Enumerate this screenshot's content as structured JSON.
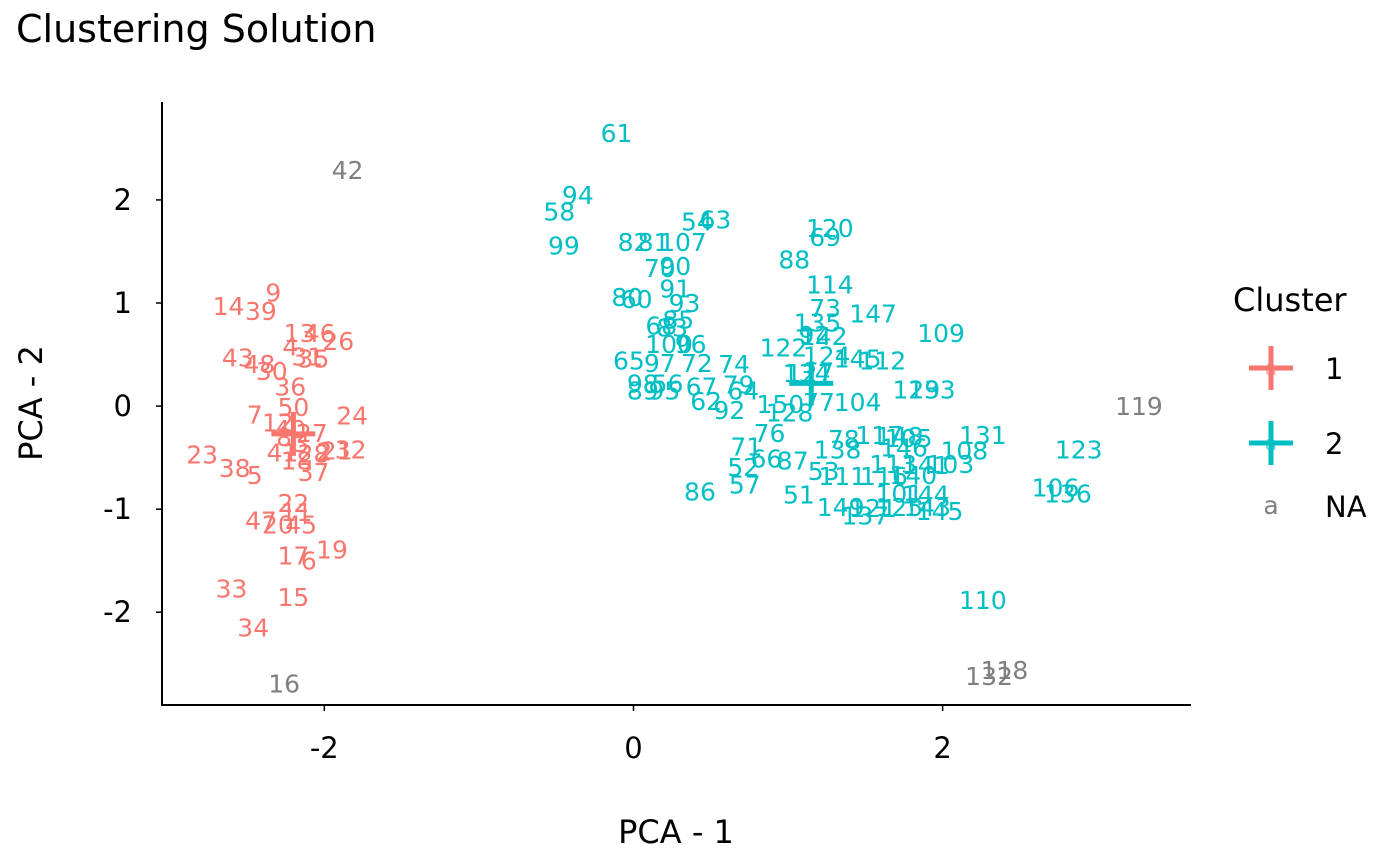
{
  "chart_data": {
    "type": "scatter",
    "title": "Clustering Solution",
    "xlabel": "PCA - 1",
    "ylabel": "PCA - 2",
    "xlim": [
      -3.05,
      3.6
    ],
    "ylim": [
      -2.9,
      2.95
    ],
    "xticks": [
      {
        "value": -2,
        "label": "-2"
      },
      {
        "value": 0,
        "label": "0"
      },
      {
        "value": 2,
        "label": "2"
      }
    ],
    "yticks": [
      {
        "value": -2,
        "label": "-2"
      },
      {
        "value": -1,
        "label": "-1"
      },
      {
        "value": 0,
        "label": "0"
      },
      {
        "value": 1,
        "label": "1"
      },
      {
        "value": 2,
        "label": "2"
      }
    ],
    "grid": false,
    "legend": {
      "title": "Cluster",
      "position": "right",
      "entries": [
        {
          "label": "1",
          "color": "#F8766D",
          "symbol": "cross"
        },
        {
          "label": "2",
          "color": "#00BFC4",
          "symbol": "cross"
        },
        {
          "label": "NA",
          "color": "#7F7F7F",
          "symbol": "a"
        }
      ]
    },
    "centers": [
      {
        "cluster": "1",
        "x": -2.2,
        "y": -0.27
      },
      {
        "cluster": "2",
        "x": 1.15,
        "y": 0.22
      }
    ],
    "series": [
      {
        "name": "1",
        "color": "#F8766D",
        "points": [
          {
            "label": "9",
            "x": -2.33,
            "y": 1.1
          },
          {
            "label": "14",
            "x": -2.62,
            "y": 0.97
          },
          {
            "label": "39",
            "x": -2.41,
            "y": 0.92
          },
          {
            "label": "13",
            "x": -2.16,
            "y": 0.71
          },
          {
            "label": "46",
            "x": -2.03,
            "y": 0.71
          },
          {
            "label": "26",
            "x": -1.91,
            "y": 0.63
          },
          {
            "label": "4",
            "x": -2.22,
            "y": 0.58
          },
          {
            "label": "31",
            "x": -2.11,
            "y": 0.48
          },
          {
            "label": "35",
            "x": -2.07,
            "y": 0.46
          },
          {
            "label": "43",
            "x": -2.56,
            "y": 0.47
          },
          {
            "label": "48",
            "x": -2.42,
            "y": 0.41
          },
          {
            "label": "30",
            "x": -2.34,
            "y": 0.34
          },
          {
            "label": "36",
            "x": -2.22,
            "y": 0.19
          },
          {
            "label": "7",
            "x": -2.45,
            "y": -0.08
          },
          {
            "label": "50",
            "x": -2.2,
            "y": -0.01
          },
          {
            "label": "12",
            "x": -2.3,
            "y": -0.16
          },
          {
            "label": "40",
            "x": -2.22,
            "y": -0.22
          },
          {
            "label": "8",
            "x": -2.26,
            "y": -0.3
          },
          {
            "label": "3",
            "x": -2.15,
            "y": -0.36
          },
          {
            "label": "27",
            "x": -2.08,
            "y": -0.26
          },
          {
            "label": "24",
            "x": -1.82,
            "y": -0.09
          },
          {
            "label": "23",
            "x": -2.79,
            "y": -0.47
          },
          {
            "label": "38",
            "x": -2.58,
            "y": -0.6
          },
          {
            "label": "5",
            "x": -2.45,
            "y": -0.67
          },
          {
            "label": "41",
            "x": -2.27,
            "y": -0.45
          },
          {
            "label": "18",
            "x": -2.18,
            "y": -0.53
          },
          {
            "label": "28",
            "x": -2.07,
            "y": -0.46
          },
          {
            "label": "2",
            "x": -2.0,
            "y": -0.44
          },
          {
            "label": "21",
            "x": -1.92,
            "y": -0.43
          },
          {
            "label": "32",
            "x": -1.83,
            "y": -0.42
          },
          {
            "label": "37",
            "x": -2.07,
            "y": -0.64
          },
          {
            "label": "22",
            "x": -2.2,
            "y": -0.94
          },
          {
            "label": "47",
            "x": -2.41,
            "y": -1.11
          },
          {
            "label": "20",
            "x": -2.3,
            "y": -1.15
          },
          {
            "label": "11",
            "x": -2.18,
            "y": -1.03
          },
          {
            "label": "45",
            "x": -2.15,
            "y": -1.15
          },
          {
            "label": "17",
            "x": -2.2,
            "y": -1.45
          },
          {
            "label": "6",
            "x": -2.1,
            "y": -1.5
          },
          {
            "label": "19",
            "x": -1.95,
            "y": -1.39
          },
          {
            "label": "33",
            "x": -2.6,
            "y": -1.77
          },
          {
            "label": "15",
            "x": -2.2,
            "y": -1.85
          },
          {
            "label": "34",
            "x": -2.46,
            "y": -2.15
          }
        ]
      },
      {
        "name": "2",
        "color": "#00BFC4",
        "points": [
          {
            "label": "61",
            "x": -0.11,
            "y": 2.65
          },
          {
            "label": "94",
            "x": -0.36,
            "y": 2.05
          },
          {
            "label": "58",
            "x": -0.48,
            "y": 1.89
          },
          {
            "label": "54",
            "x": 0.41,
            "y": 1.79
          },
          {
            "label": "63",
            "x": 0.53,
            "y": 1.81
          },
          {
            "label": "120",
            "x": 1.27,
            "y": 1.73
          },
          {
            "label": "69",
            "x": 1.24,
            "y": 1.64
          },
          {
            "label": "99",
            "x": -0.45,
            "y": 1.56
          },
          {
            "label": "82",
            "x": 0.0,
            "y": 1.59
          },
          {
            "label": "81",
            "x": 0.13,
            "y": 1.59
          },
          {
            "label": "107",
            "x": 0.32,
            "y": 1.59
          },
          {
            "label": "88",
            "x": 1.04,
            "y": 1.42
          },
          {
            "label": "70",
            "x": 0.17,
            "y": 1.34
          },
          {
            "label": "90",
            "x": 0.27,
            "y": 1.36
          },
          {
            "label": "114",
            "x": 1.27,
            "y": 1.18
          },
          {
            "label": "91",
            "x": 0.27,
            "y": 1.14
          },
          {
            "label": "80",
            "x": -0.04,
            "y": 1.06
          },
          {
            "label": "60",
            "x": 0.02,
            "y": 1.04
          },
          {
            "label": "93",
            "x": 0.33,
            "y": 1.0
          },
          {
            "label": "73",
            "x": 1.24,
            "y": 0.95
          },
          {
            "label": "147",
            "x": 1.55,
            "y": 0.9
          },
          {
            "label": "135",
            "x": 1.19,
            "y": 0.81
          },
          {
            "label": "109",
            "x": 1.99,
            "y": 0.71
          },
          {
            "label": "85",
            "x": 0.29,
            "y": 0.84
          },
          {
            "label": "68",
            "x": 0.18,
            "y": 0.78
          },
          {
            "label": "83",
            "x": 0.25,
            "y": 0.76
          },
          {
            "label": "92",
            "x": 1.17,
            "y": 0.69
          },
          {
            "label": "142",
            "x": 1.23,
            "y": 0.68
          },
          {
            "label": "100",
            "x": 0.23,
            "y": 0.6
          },
          {
            "label": "96",
            "x": 0.37,
            "y": 0.6
          },
          {
            "label": "122",
            "x": 0.97,
            "y": 0.57
          },
          {
            "label": "124",
            "x": 1.25,
            "y": 0.49
          },
          {
            "label": "145",
            "x": 1.45,
            "y": 0.46
          },
          {
            "label": "112",
            "x": 1.61,
            "y": 0.44
          },
          {
            "label": "65",
            "x": -0.03,
            "y": 0.44
          },
          {
            "label": "97",
            "x": 0.17,
            "y": 0.42
          },
          {
            "label": "72",
            "x": 0.41,
            "y": 0.42
          },
          {
            "label": "74",
            "x": 0.65,
            "y": 0.41
          },
          {
            "label": "134",
            "x": 1.12,
            "y": 0.32
          },
          {
            "label": "127",
            "x": 1.14,
            "y": 0.32
          },
          {
            "label": "98",
            "x": 0.06,
            "y": 0.22
          },
          {
            "label": "56",
            "x": 0.22,
            "y": 0.22
          },
          {
            "label": "67",
            "x": 0.44,
            "y": 0.19
          },
          {
            "label": "79",
            "x": 0.68,
            "y": 0.21
          },
          {
            "label": "89",
            "x": 0.06,
            "y": 0.15
          },
          {
            "label": "95",
            "x": 0.2,
            "y": 0.15
          },
          {
            "label": "64",
            "x": 0.71,
            "y": 0.15
          },
          {
            "label": "62",
            "x": 0.47,
            "y": 0.05
          },
          {
            "label": "129",
            "x": 1.83,
            "y": 0.16
          },
          {
            "label": "133",
            "x": 1.93,
            "y": 0.16
          },
          {
            "label": "104",
            "x": 1.45,
            "y": 0.04
          },
          {
            "label": "150",
            "x": 0.95,
            "y": 0.02
          },
          {
            "label": "77",
            "x": 1.2,
            "y": 0.04
          },
          {
            "label": "92",
            "x": 0.62,
            "y": -0.04
          },
          {
            "label": "128",
            "x": 1.01,
            "y": -0.06
          },
          {
            "label": "76",
            "x": 0.88,
            "y": -0.26
          },
          {
            "label": "117",
            "x": 1.59,
            "y": -0.28
          },
          {
            "label": "148",
            "x": 1.72,
            "y": -0.29
          },
          {
            "label": "78",
            "x": 1.36,
            "y": -0.32
          },
          {
            "label": "131",
            "x": 2.26,
            "y": -0.28
          },
          {
            "label": "105",
            "x": 1.78,
            "y": -0.31
          },
          {
            "label": "71",
            "x": 0.73,
            "y": -0.39
          },
          {
            "label": "138",
            "x": 1.32,
            "y": -0.42
          },
          {
            "label": "146",
            "x": 1.75,
            "y": -0.4
          },
          {
            "label": "108",
            "x": 2.14,
            "y": -0.43
          },
          {
            "label": "123",
            "x": 2.88,
            "y": -0.42
          },
          {
            "label": "66",
            "x": 0.86,
            "y": -0.51
          },
          {
            "label": "87",
            "x": 1.03,
            "y": -0.53
          },
          {
            "label": "53",
            "x": 1.23,
            "y": -0.63
          },
          {
            "label": "52",
            "x": 0.71,
            "y": -0.59
          },
          {
            "label": "113",
            "x": 1.68,
            "y": -0.56
          },
          {
            "label": "141",
            "x": 1.89,
            "y": -0.57
          },
          {
            "label": "103",
            "x": 2.05,
            "y": -0.56
          },
          {
            "label": "111",
            "x": 1.35,
            "y": -0.68
          },
          {
            "label": "116",
            "x": 1.62,
            "y": -0.68
          },
          {
            "label": "140",
            "x": 1.81,
            "y": -0.67
          },
          {
            "label": "57",
            "x": 0.72,
            "y": -0.76
          },
          {
            "label": "86",
            "x": 0.43,
            "y": -0.83
          },
          {
            "label": "51",
            "x": 1.07,
            "y": -0.86
          },
          {
            "label": "106",
            "x": 2.73,
            "y": -0.79
          },
          {
            "label": "136",
            "x": 2.81,
            "y": -0.85
          },
          {
            "label": "101",
            "x": 1.72,
            "y": -0.85
          },
          {
            "label": "144",
            "x": 1.89,
            "y": -0.86
          },
          {
            "label": "149",
            "x": 1.34,
            "y": -0.98
          },
          {
            "label": "121",
            "x": 1.55,
            "y": -0.99
          },
          {
            "label": "137",
            "x": 1.5,
            "y": -1.06
          },
          {
            "label": "125",
            "x": 1.72,
            "y": -0.98
          },
          {
            "label": "143",
            "x": 1.9,
            "y": -0.98
          },
          {
            "label": "145",
            "x": 1.98,
            "y": -1.02
          },
          {
            "label": "110",
            "x": 2.26,
            "y": -1.88
          }
        ]
      },
      {
        "name": "NA",
        "color": "#7F7F7F",
        "points": [
          {
            "label": "42",
            "x": -1.85,
            "y": 2.29
          },
          {
            "label": "119",
            "x": 3.27,
            "y": 0.0
          },
          {
            "label": "118",
            "x": 2.4,
            "y": -2.56
          },
          {
            "label": "132",
            "x": 2.3,
            "y": -2.62
          },
          {
            "label": "16",
            "x": -2.26,
            "y": -2.69
          }
        ]
      }
    ]
  }
}
